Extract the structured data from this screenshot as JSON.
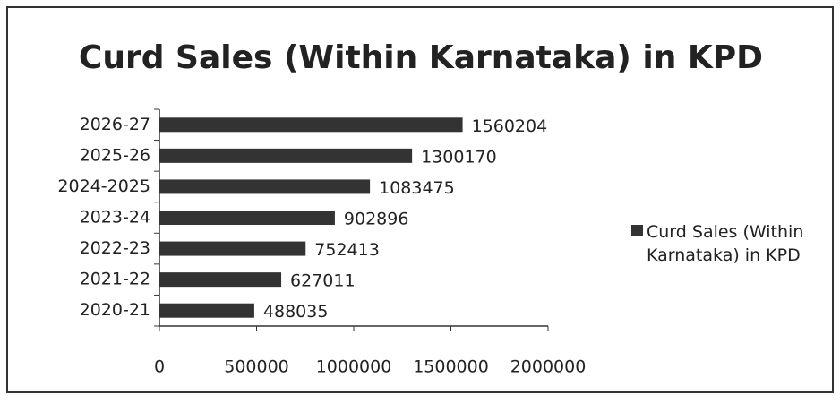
{
  "chart_data": {
    "type": "bar",
    "orientation": "horizontal",
    "title": "Curd Sales (Within Karnataka) in KPD",
    "categories": [
      "2020-21",
      "2021-22",
      "2022-23",
      "2023-24",
      "2024-2025",
      "2025-26",
      "2026-27"
    ],
    "series": [
      {
        "name": "Curd Sales (Within Karnataka) in KPD",
        "color": "#333333",
        "values": [
          488035,
          627011,
          752413,
          902896,
          1083475,
          1300170,
          1560204
        ]
      }
    ],
    "xlim": [
      0,
      2000000
    ],
    "xticks": [
      0,
      500000,
      1000000,
      1500000,
      2000000
    ],
    "legend": "right"
  }
}
